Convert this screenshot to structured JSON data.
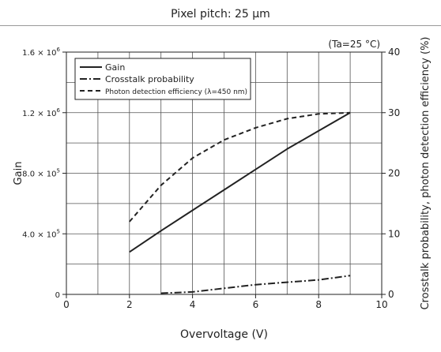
{
  "header": {
    "title": "Pixel pitch: 25 μm"
  },
  "chart_data": {
    "type": "line",
    "annotation": "(Ta=25 °C)",
    "xlabel": "Overvoltage (V)",
    "ylabel_left": "Gain",
    "ylabel_right": "Crosstalk probability, photon detection efficiency (%)",
    "xlim": [
      0,
      10
    ],
    "ylim_left": [
      0,
      1600000
    ],
    "ylim_right": [
      0,
      40
    ],
    "x_ticks": [
      "0",
      "2",
      "4",
      "6",
      "8",
      "10"
    ],
    "x_tick_values": [
      0,
      2,
      4,
      6,
      8,
      10
    ],
    "y_left_ticks": [
      {
        "value": 0,
        "base": "0",
        "exp": ""
      },
      {
        "value": 400000,
        "base": "4.0 × 10",
        "exp": "5"
      },
      {
        "value": 800000,
        "base": "8.0 × 10",
        "exp": "5"
      },
      {
        "value": 1200000,
        "base": "1.2 × 10",
        "exp": "6"
      },
      {
        "value": 1600000,
        "base": "1.6 × 10",
        "exp": "6"
      }
    ],
    "y_right_ticks": [
      "0",
      "10",
      "20",
      "30",
      "40"
    ],
    "y_right_tick_values": [
      0,
      10,
      20,
      30,
      40
    ],
    "grid": true,
    "legend_position": "top-left",
    "series": [
      {
        "name": "Gain",
        "axis": "left",
        "style": "solid",
        "x": [
          2,
          3,
          4,
          5,
          6,
          7,
          8,
          9
        ],
        "y": [
          280000,
          420000,
          555000,
          690000,
          825000,
          960000,
          1080000,
          1200000
        ]
      },
      {
        "name": "Crosstalk probability",
        "axis": "right",
        "style": "dashdot",
        "x": [
          3,
          4,
          5,
          6,
          7,
          8,
          9
        ],
        "y": [
          0.2,
          0.4,
          1.0,
          1.6,
          2.0,
          2.4,
          3.1
        ]
      },
      {
        "name": "Photon detection efficiency (λ=450 nm)",
        "axis": "right",
        "style": "dashed",
        "x": [
          2,
          3,
          4,
          5,
          6,
          7,
          8,
          9
        ],
        "y": [
          12,
          18,
          22.5,
          25.5,
          27.5,
          29.0,
          29.8,
          30.0
        ]
      }
    ]
  }
}
